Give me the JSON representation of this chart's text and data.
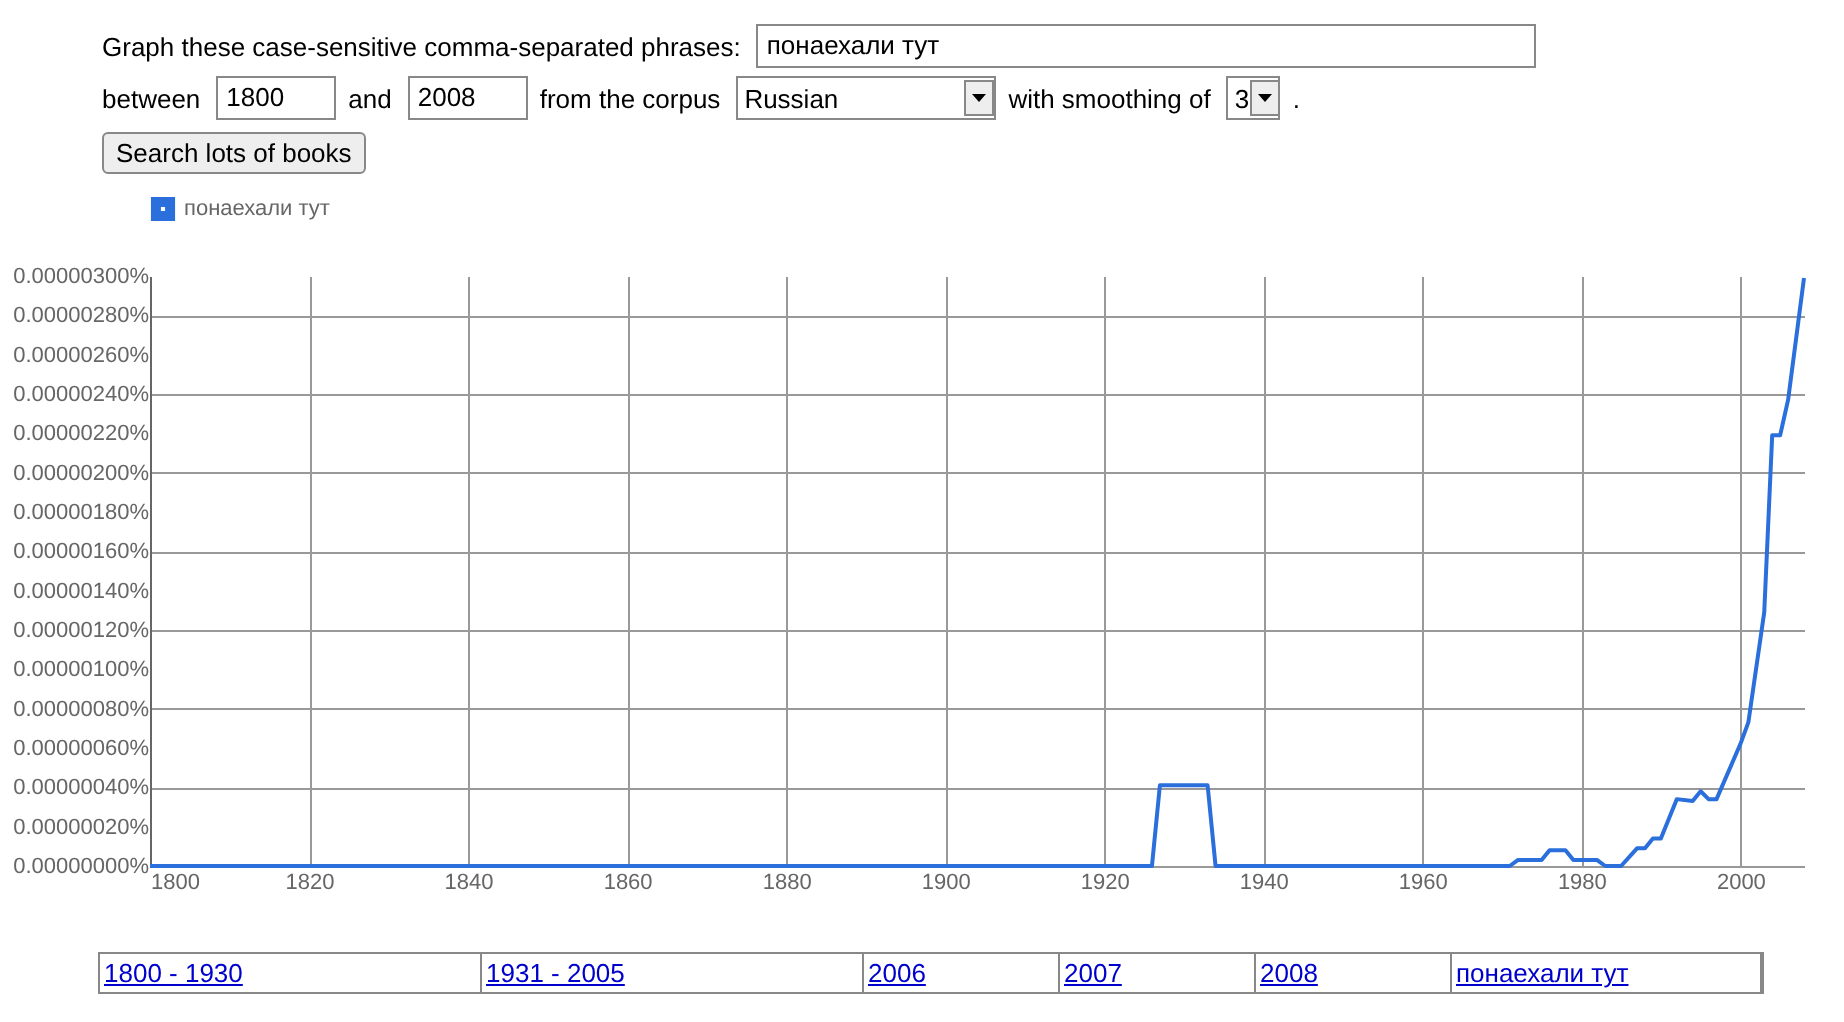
{
  "chart_data": {
    "type": "line",
    "legend": "top",
    "grid": true,
    "marker": "none",
    "line_style": "solid",
    "annotations": [
      "Graph these case-sensitive comma-separated phrases:",
      "понаехали тут",
      "between",
      "1800",
      "and",
      "2008",
      "from the corpus",
      "Russian",
      "with smoothing of",
      "3",
      ".",
      "Search lots of books",
      "1800 - 1930",
      "1931 - 2005",
      "2006",
      "2007",
      "2008",
      "понаехали тут"
    ],
    "x": [
      1800,
      1926,
      1927,
      1933,
      1934,
      1971,
      1972,
      1975,
      1976,
      1978,
      1979,
      1982,
      1983,
      1985,
      1987,
      1988,
      1989,
      1990,
      1992,
      1994,
      1995,
      1996,
      1997,
      2000,
      2001,
      2003,
      2004,
      2005,
      2006,
      2008
    ],
    "series": [
      {
        "name": "понаехали тут",
        "color": "#2a6fdb",
        "values": [
          0,
          0,
          4.1e-07,
          4.1e-07,
          0,
          0,
          3e-08,
          3e-08,
          8e-08,
          8e-08,
          3e-08,
          3e-08,
          0,
          0,
          9e-08,
          9e-08,
          1.4e-07,
          1.4e-07,
          3.4e-07,
          3.3e-07,
          3.8e-07,
          3.4e-07,
          3.4e-07,
          6.2e-07,
          7.3e-07,
          1.29e-06,
          2.19e-06,
          2.19e-06,
          2.37e-06,
          2.99e-06
        ]
      }
    ],
    "xlim": [
      1800,
      2008
    ],
    "xticks": [
      1800,
      1820,
      1840,
      1860,
      1880,
      1900,
      1920,
      1940,
      1960,
      1980,
      2000
    ],
    "ylim": [
      0,
      3e-06
    ],
    "yticks": [
      {
        "value": 0,
        "label": "0.00000000%"
      },
      {
        "value": 2e-07,
        "label": "0.00000020%"
      },
      {
        "value": 4e-07,
        "label": "0.00000040%"
      },
      {
        "value": 6e-07,
        "label": "0.00000060%"
      },
      {
        "value": 8e-07,
        "label": "0.00000080%"
      },
      {
        "value": 1e-06,
        "label": "0.00000100%"
      },
      {
        "value": 1.2e-06,
        "label": "0.00000120%"
      },
      {
        "value": 1.4e-06,
        "label": "0.00000140%"
      },
      {
        "value": 1.6e-06,
        "label": "0.00000160%"
      },
      {
        "value": 1.8e-06,
        "label": "0.00000180%"
      },
      {
        "value": 2e-06,
        "label": "0.00000200%"
      },
      {
        "value": 2.2e-06,
        "label": "0.00000220%"
      },
      {
        "value": 2.4e-06,
        "label": "0.00000240%"
      },
      {
        "value": 2.6e-06,
        "label": "0.00000260%"
      },
      {
        "value": 2.8e-06,
        "label": "0.00000280%"
      },
      {
        "value": 3e-06,
        "label": "0.00000300%"
      }
    ]
  }
}
